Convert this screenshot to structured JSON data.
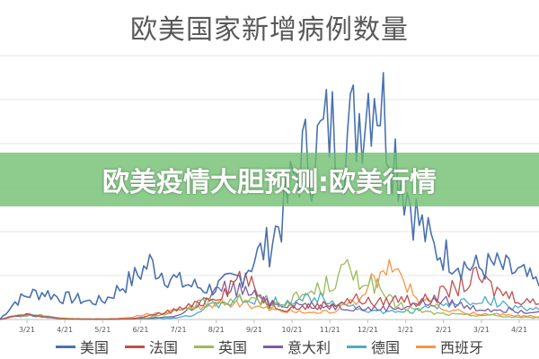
{
  "banner": {
    "text": "欧美疫情大胆预测:欧美行情"
  },
  "chart_data": {
    "type": "line",
    "title": "欧美国家新增病例数量",
    "xlabel": "",
    "ylabel": "",
    "ylim": [
      0,
      300000
    ],
    "grid": true,
    "legend_position": "bottom",
    "tick_labels": [
      "3/21",
      "4/21",
      "5/21",
      "6/21",
      "7/21",
      "8/21",
      "9/21",
      "10/21",
      "11/21",
      "12/21",
      "1/21",
      "2/21",
      "3/21",
      "4/21"
    ],
    "series": [
      {
        "name": "美国",
        "color": "#4a72b0",
        "values": [
          0,
          20000,
          29000,
          31000,
          25000,
          24000,
          20000,
          22000,
          36000,
          48000,
          64000,
          52000,
          42000,
          38000,
          35000,
          40000,
          48000,
          70000,
          85000,
          125000,
          180000,
          190000,
          220000,
          200000,
          235000,
          275000,
          215000,
          155000,
          110000,
          80000,
          72000,
          62000,
          58000,
          62000,
          56000,
          50000,
          38000
        ]
      },
      {
        "name": "法国",
        "color": "#c0504d",
        "values": [
          0,
          4000,
          6000,
          2500,
          1000,
          500,
          500,
          500,
          800,
          1200,
          4000,
          8000,
          12000,
          16000,
          24000,
          33000,
          50000,
          35000,
          18000,
          13000,
          14000,
          15000,
          18000,
          20000,
          24000,
          18000,
          22000,
          24000,
          20000,
          26000,
          33000,
          40000,
          48000,
          34000,
          28000,
          22000,
          18000
        ]
      },
      {
        "name": "英国",
        "color": "#9bbb59",
        "values": [
          0,
          4000,
          5000,
          4000,
          2000,
          1000,
          700,
          700,
          900,
          1500,
          3000,
          5000,
          10000,
          16000,
          20000,
          22000,
          25000,
          21000,
          16000,
          18000,
          26000,
          32000,
          40000,
          55000,
          48000,
          40000,
          22000,
          14000,
          10000,
          7000,
          6000,
          5000,
          5000,
          4500,
          3000,
          2500,
          2000
        ]
      },
      {
        "name": "意大利",
        "color": "#7b5ea7",
        "values": [
          0,
          4000,
          5000,
          3500,
          1500,
          500,
          300,
          300,
          400,
          800,
          1500,
          2500,
          5000,
          15000,
          25000,
          35000,
          34000,
          26000,
          20000,
          18000,
          17000,
          16000,
          15000,
          14000,
          13000,
          12000,
          13000,
          14000,
          18000,
          22000,
          20000,
          15000,
          12000,
          12000,
          11000,
          10000,
          9000
        ]
      },
      {
        "name": "德国",
        "color": "#4bacc6",
        "values": [
          0,
          4000,
          5000,
          3000,
          1000,
          500,
          400,
          400,
          500,
          1000,
          1200,
          1500,
          2500,
          6000,
          14000,
          19000,
          21000,
          22000,
          21000,
          20000,
          22000,
          25000,
          24000,
          18000,
          12000,
          9000,
          8000,
          9000,
          11000,
          14000,
          17000,
          20000,
          22000,
          20000,
          15000,
          13000,
          11000
        ]
      },
      {
        "name": "西班牙",
        "color": "#f79646",
        "values": [
          0,
          5000,
          6000,
          3000,
          1000,
          300,
          300,
          500,
          1500,
          3000,
          6000,
          9000,
          11000,
          13000,
          16000,
          20000,
          19000,
          16000,
          12000,
          10000,
          9000,
          8000,
          10000,
          14000,
          25000,
          45000,
          60000,
          42000,
          25000,
          15000,
          10000,
          8000,
          7000,
          6000,
          5000,
          4000,
          3000
        ]
      }
    ]
  }
}
